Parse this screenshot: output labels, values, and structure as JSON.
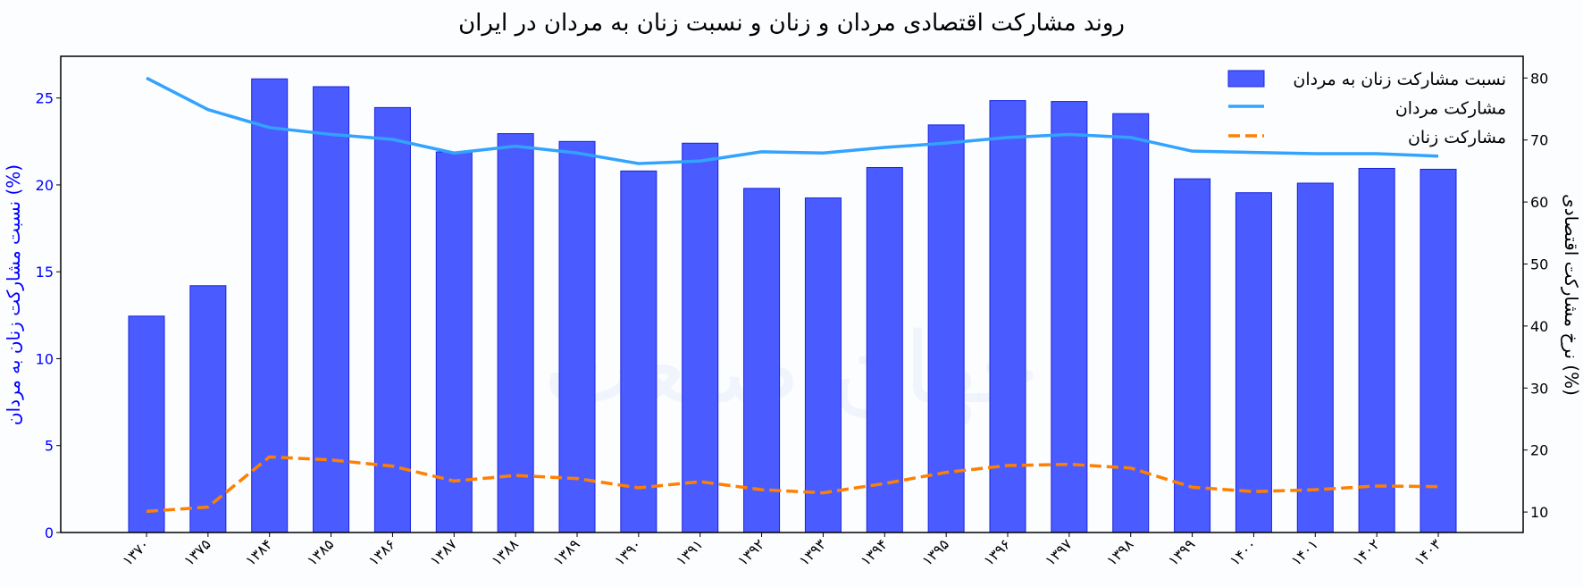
{
  "chart_data": {
    "type": "bar",
    "title": "روند مشارکت اقتصادی مردان و زنان و نسبت زنان به مردان در ایران",
    "ylabel_left": "نسبت مشارکت زنان به مردان (%)",
    "ylabel_right": "نرخ مشارکت اقتصادی (%)",
    "categories": [
      "۱۳۷۰",
      "۱۳۷۵",
      "۱۳۸۴",
      "۱۳۸۵",
      "۱۳۸۶",
      "۱۳۸۷",
      "۱۳۸۸",
      "۱۳۸۹",
      "۱۳۹۰",
      "۱۳۹۱",
      "۱۳۹۲",
      "۱۳۹۳",
      "۱۳۹۴",
      "۱۳۹۵",
      "۱۳۹۶",
      "۱۳۹۷",
      "۱۳۹۸",
      "۱۳۹۹",
      "۱۴۰۰",
      "۱۴۰۱",
      "۱۴۰۲",
      "۱۴۰۳"
    ],
    "ylim_left": [
      0,
      27.4
    ],
    "yticks_left": [
      0,
      5,
      10,
      15,
      20,
      25
    ],
    "ylim_right": [
      6.7,
      83.5
    ],
    "yticks_right": [
      10,
      20,
      30,
      40,
      50,
      60,
      70,
      80
    ],
    "grid": false,
    "legend_position": "top-right",
    "series": [
      {
        "name": "نسبت مشارکت زنان به مردان",
        "type": "bar",
        "axis": "left",
        "color": "#4a5cff",
        "values": [
          12.45,
          14.2,
          26.1,
          25.65,
          24.45,
          21.9,
          22.95,
          22.5,
          20.8,
          22.4,
          19.8,
          19.25,
          21.0,
          23.45,
          24.85,
          24.8,
          24.1,
          20.35,
          19.55,
          20.1,
          20.95,
          20.9
        ]
      },
      {
        "name": "مشارکت مردان",
        "type": "line",
        "axis": "right",
        "color": "#33a3ff",
        "style": "solid",
        "values": [
          80.0,
          74.9,
          72.0,
          70.9,
          70.1,
          67.9,
          69.0,
          67.9,
          66.2,
          66.6,
          68.1,
          67.9,
          68.8,
          69.5,
          70.4,
          70.9,
          70.4,
          68.2,
          68.0,
          67.8,
          67.8,
          67.4
        ]
      },
      {
        "name": "مشارکت زنان",
        "type": "line",
        "axis": "right",
        "color": "#ff8000",
        "style": "dashed",
        "values": [
          10.1,
          10.8,
          18.9,
          18.4,
          17.4,
          15.0,
          15.9,
          15.4,
          13.9,
          14.9,
          13.6,
          13.1,
          14.6,
          16.4,
          17.5,
          17.7,
          17.1,
          14.0,
          13.3,
          13.6,
          14.2,
          14.1
        ]
      }
    ],
    "watermark": "جهان صنعت"
  }
}
